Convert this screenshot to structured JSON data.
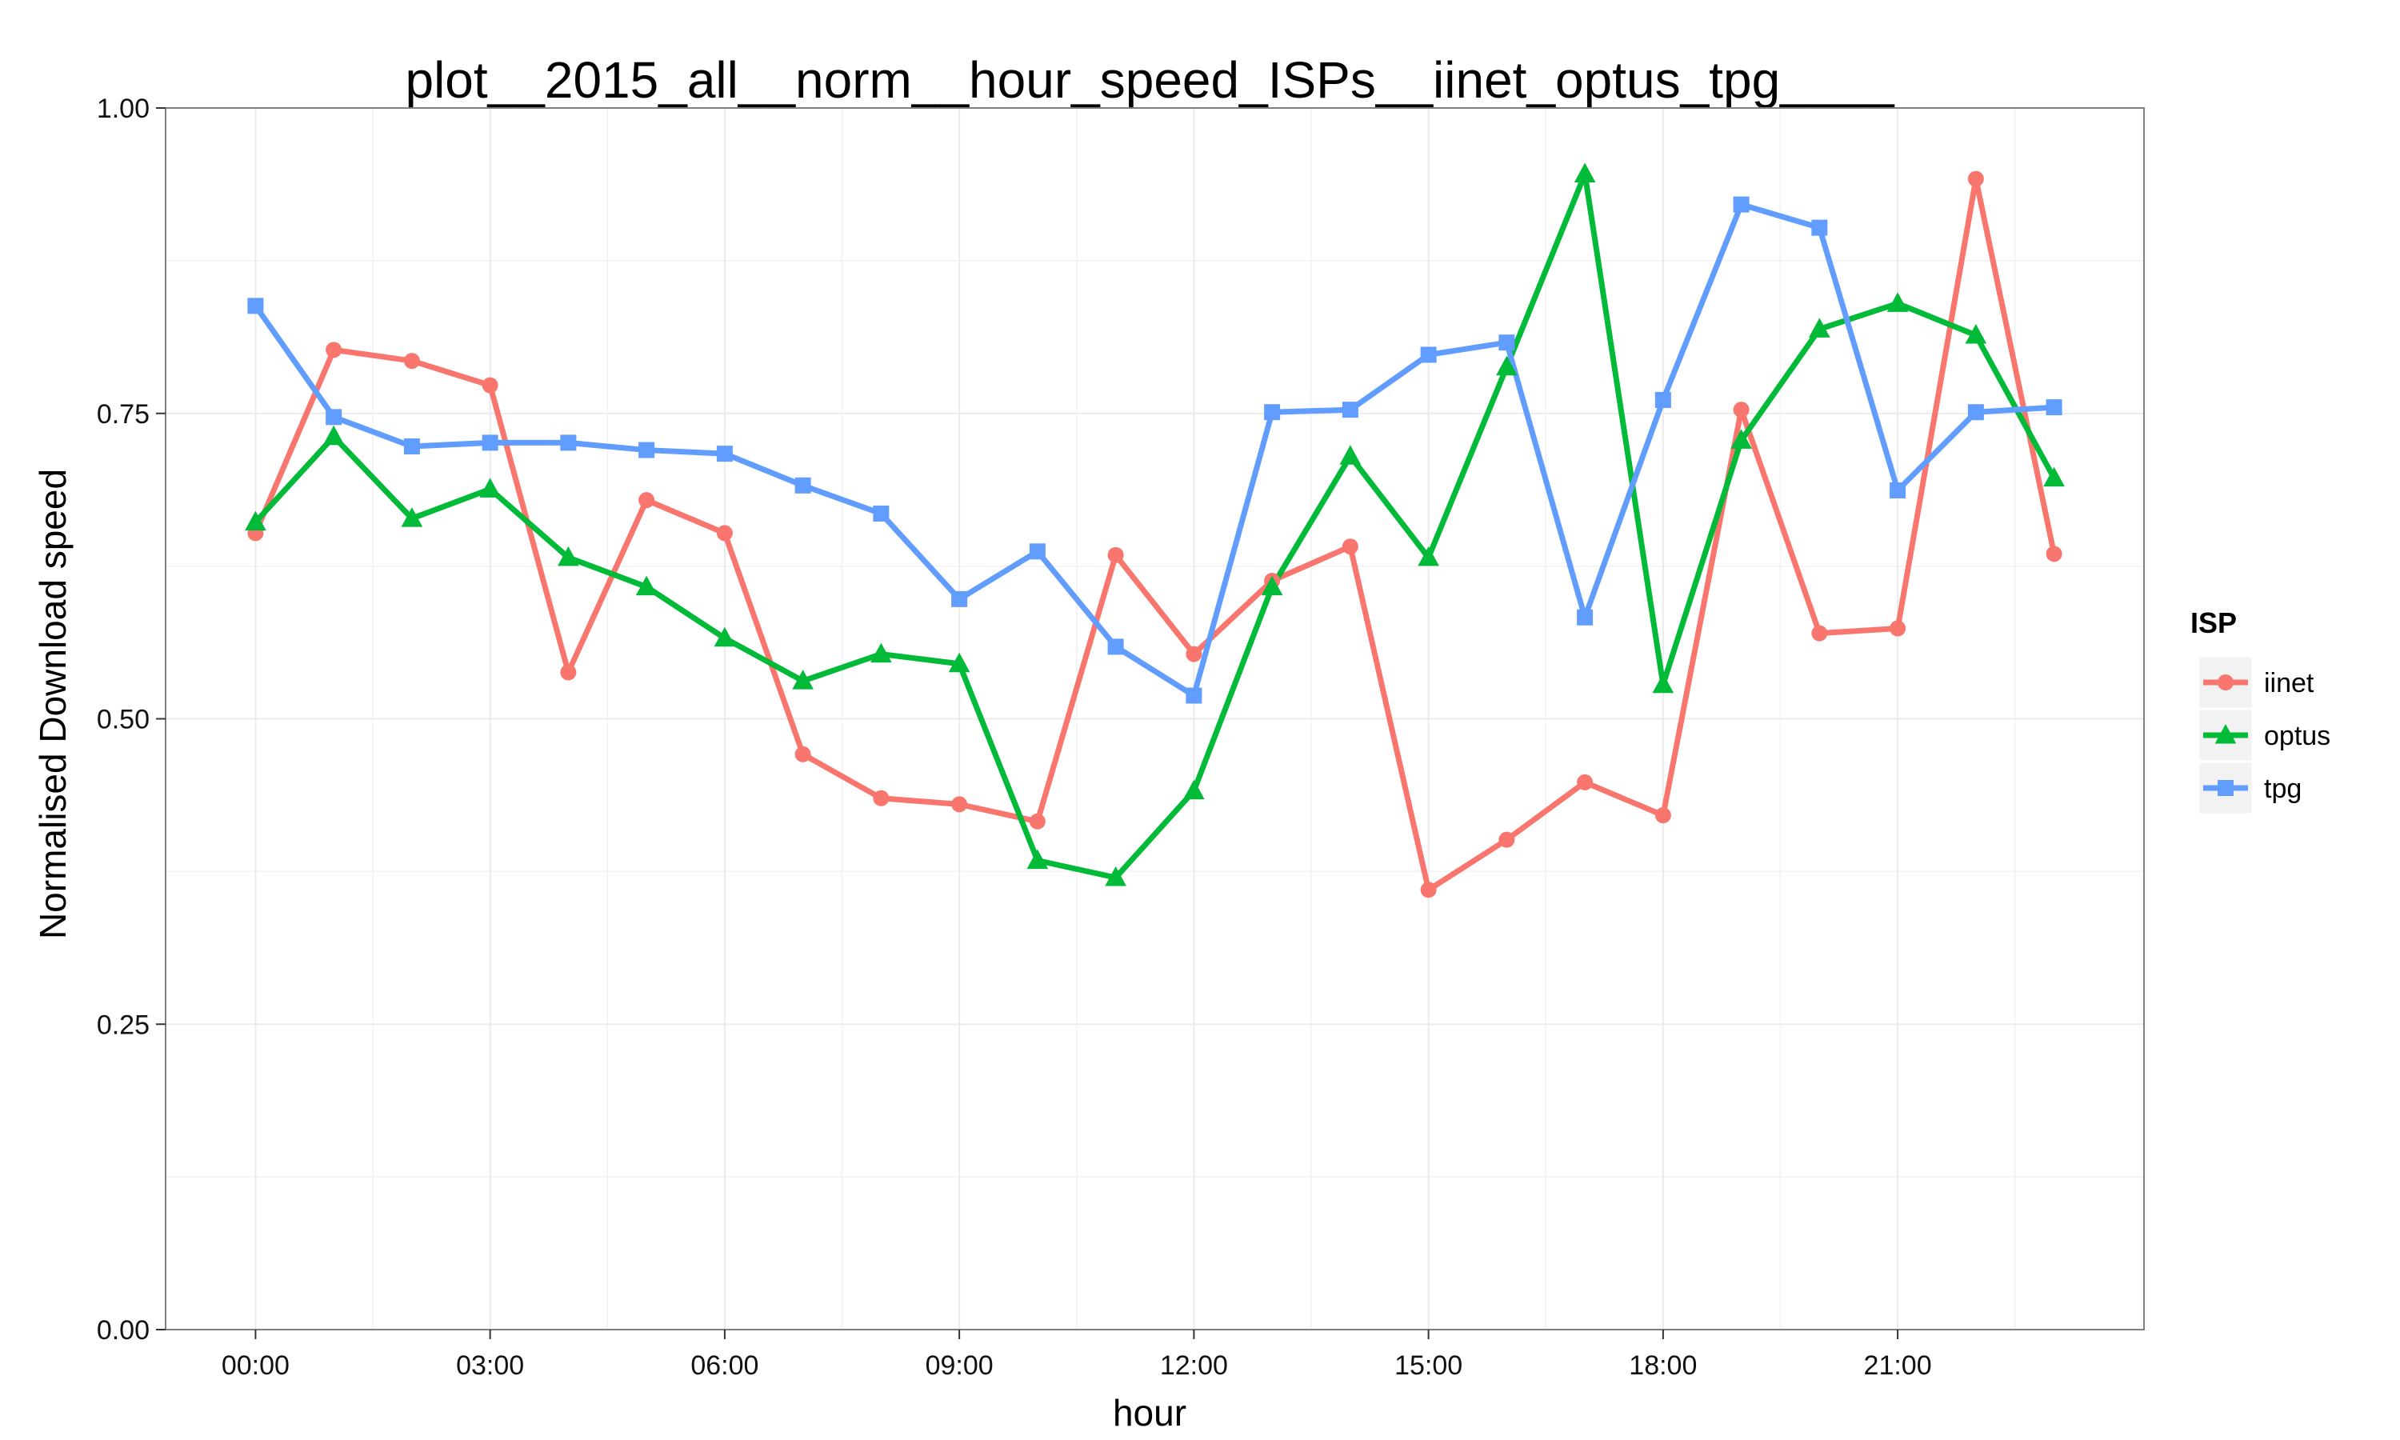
{
  "chart_data": {
    "type": "line",
    "title": "plot__2015_all__norm__hour_speed_ISPs__iinet_optus_tpg____",
    "xlabel": "hour",
    "ylabel": "Normalised Download speed",
    "x": [
      "00:00",
      "01:00",
      "02:00",
      "03:00",
      "04:00",
      "05:00",
      "06:00",
      "07:00",
      "08:00",
      "09:00",
      "10:00",
      "11:00",
      "12:00",
      "13:00",
      "14:00",
      "15:00",
      "16:00",
      "17:00",
      "18:00",
      "19:00",
      "20:00",
      "21:00",
      "22:00",
      "23:00"
    ],
    "xticks": [
      "00:00",
      "03:00",
      "06:00",
      "09:00",
      "12:00",
      "15:00",
      "18:00",
      "21:00"
    ],
    "ylim": [
      0,
      1
    ],
    "yticks": [
      "0.00",
      "0.25",
      "0.50",
      "0.75",
      "1.00"
    ],
    "grid": true,
    "legend": {
      "title": "ISP",
      "position": "right"
    },
    "series": [
      {
        "name": "iinet",
        "color": "#F8766D",
        "marker": "circle",
        "values": [
          0.652,
          0.802,
          0.793,
          0.773,
          0.538,
          0.679,
          0.652,
          0.471,
          0.435,
          0.43,
          0.416,
          0.634,
          0.553,
          0.613,
          0.641,
          0.36,
          0.401,
          0.448,
          0.421,
          0.753,
          0.57,
          0.574,
          0.942,
          0.635
        ]
      },
      {
        "name": "optus",
        "color": "#00BA38",
        "marker": "triangle",
        "values": [
          0.661,
          0.731,
          0.664,
          0.688,
          0.632,
          0.608,
          0.566,
          0.531,
          0.553,
          0.545,
          0.384,
          0.37,
          0.441,
          0.608,
          0.715,
          0.632,
          0.788,
          0.946,
          0.528,
          0.728,
          0.819,
          0.84,
          0.814,
          0.697
        ]
      },
      {
        "name": "tpg",
        "color": "#619CFF",
        "marker": "square",
        "values": [
          0.838,
          0.747,
          0.723,
          0.726,
          0.726,
          0.72,
          0.717,
          0.691,
          0.668,
          0.598,
          0.637,
          0.559,
          0.519,
          0.751,
          0.753,
          0.798,
          0.808,
          0.583,
          0.761,
          0.921,
          0.902,
          0.687,
          0.751,
          0.755
        ]
      }
    ]
  }
}
